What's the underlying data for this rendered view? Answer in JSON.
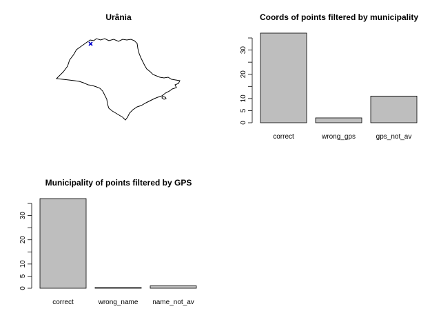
{
  "map_panel": {
    "title": "Urânia",
    "region_outline_color": "#000000",
    "point_color": "#0000cc",
    "point_marker": "x-cross"
  },
  "chart_data": [
    {
      "type": "bar",
      "title": "Coords of points filtered by municipality",
      "xlabel": "",
      "ylabel": "",
      "categories": [
        "correct",
        "wrong_gps",
        "gps_not_av"
      ],
      "values": [
        37,
        2,
        11
      ],
      "yticks": [
        0,
        5,
        10,
        20,
        30
      ],
      "yticks_unlabeled": [
        15,
        25,
        35
      ],
      "ylim": [
        0,
        37
      ],
      "bar_color": "#bebebe",
      "grid": false,
      "legend": "none"
    },
    {
      "type": "bar",
      "title": "Municipality of points filtered by GPS",
      "xlabel": "",
      "ylabel": "",
      "categories": [
        "correct",
        "wrong_name",
        "name_not_av"
      ],
      "values": [
        37,
        0.3,
        1
      ],
      "yticks": [
        0,
        5,
        10,
        20,
        30
      ],
      "yticks_unlabeled": [
        15,
        25,
        35
      ],
      "ylim": [
        0,
        37
      ],
      "bar_color": "#bebebe",
      "grid": false,
      "legend": "none"
    }
  ]
}
